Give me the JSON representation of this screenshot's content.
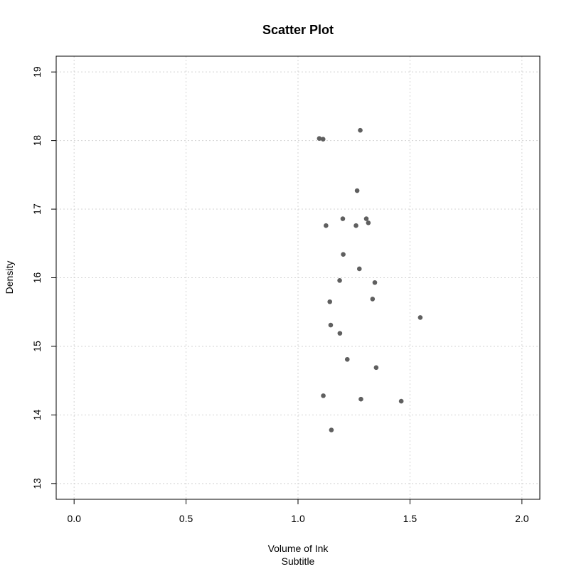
{
  "chart_data": {
    "type": "scatter",
    "title": "Scatter Plot",
    "xlabel": "Volume of Ink",
    "subtitle": "Subtitle",
    "ylabel": "Density",
    "xlim": [
      -0.08,
      2.08
    ],
    "ylim": [
      12.77,
      19.23
    ],
    "x_ticks": [
      "0.0",
      "0.5",
      "1.0",
      "1.5",
      "2.0"
    ],
    "y_ticks": [
      "13",
      "14",
      "15",
      "16",
      "17",
      "18",
      "19"
    ],
    "x_tick_values": [
      0.0,
      0.5,
      1.0,
      1.5,
      2.0
    ],
    "y_tick_values": [
      13,
      14,
      15,
      16,
      17,
      18,
      19
    ],
    "grid": true,
    "point_color": "#5f5f5f",
    "grid_color": "#d3d3d3",
    "points": [
      {
        "x": 1.278,
        "y": 18.15
      },
      {
        "x": 1.095,
        "y": 18.03
      },
      {
        "x": 1.112,
        "y": 18.02
      },
      {
        "x": 1.264,
        "y": 17.27
      },
      {
        "x": 1.2,
        "y": 16.86
      },
      {
        "x": 1.305,
        "y": 16.86
      },
      {
        "x": 1.314,
        "y": 16.8
      },
      {
        "x": 1.125,
        "y": 16.76
      },
      {
        "x": 1.259,
        "y": 16.76
      },
      {
        "x": 1.202,
        "y": 16.34
      },
      {
        "x": 1.274,
        "y": 16.13
      },
      {
        "x": 1.186,
        "y": 15.96
      },
      {
        "x": 1.343,
        "y": 15.93
      },
      {
        "x": 1.333,
        "y": 15.69
      },
      {
        "x": 1.142,
        "y": 15.65
      },
      {
        "x": 1.546,
        "y": 15.42
      },
      {
        "x": 1.146,
        "y": 15.31
      },
      {
        "x": 1.187,
        "y": 15.19
      },
      {
        "x": 1.22,
        "y": 14.81
      },
      {
        "x": 1.349,
        "y": 14.69
      },
      {
        "x": 1.113,
        "y": 14.28
      },
      {
        "x": 1.281,
        "y": 14.23
      },
      {
        "x": 1.461,
        "y": 14.2
      },
      {
        "x": 1.149,
        "y": 13.78
      }
    ]
  }
}
